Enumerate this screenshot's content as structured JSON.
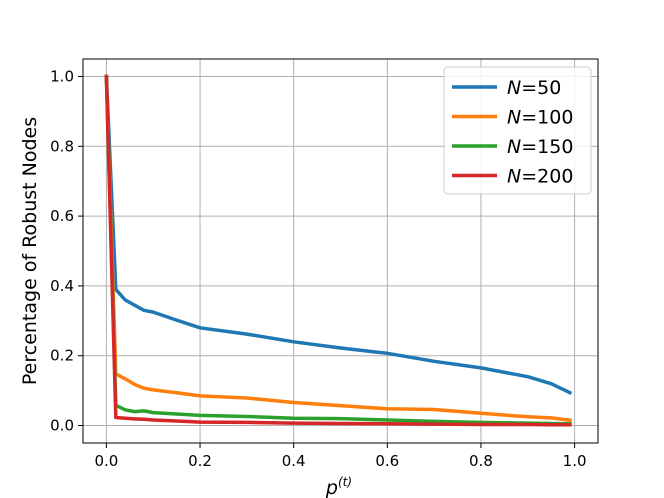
{
  "chart_data": {
    "type": "line",
    "title": "",
    "xlabel_base": "p",
    "xlabel_sup": "(t)",
    "ylabel": "Percentage of Robust Nodes",
    "xlim": [
      -0.05,
      1.05
    ],
    "ylim": [
      -0.05,
      1.05
    ],
    "xticks": [
      0.0,
      0.2,
      0.4,
      0.6,
      0.8,
      1.0
    ],
    "xtick_labels": [
      "0.0",
      "0.2",
      "0.4",
      "0.6",
      "0.8",
      "1.0"
    ],
    "yticks": [
      0.0,
      0.2,
      0.4,
      0.6,
      0.8,
      1.0
    ],
    "ytick_labels": [
      "0.0",
      "0.2",
      "0.4",
      "0.6",
      "0.8",
      "1.0"
    ],
    "grid": true,
    "legend_position": "top-right",
    "series": [
      {
        "name": "N=50",
        "name_var": "N",
        "name_value": "=50",
        "color": "#1f77b4",
        "x": [
          0.0,
          0.02,
          0.04,
          0.06,
          0.08,
          0.1,
          0.15,
          0.2,
          0.3,
          0.4,
          0.5,
          0.6,
          0.7,
          0.8,
          0.9,
          0.95,
          0.99
        ],
        "y": [
          1.0,
          0.39,
          0.36,
          0.345,
          0.33,
          0.325,
          0.302,
          0.28,
          0.262,
          0.24,
          0.222,
          0.207,
          0.184,
          0.165,
          0.14,
          0.12,
          0.094
        ]
      },
      {
        "name": "N=100",
        "name_var": "N",
        "name_value": "=100",
        "color": "#ff7f0e",
        "x": [
          0.0,
          0.02,
          0.04,
          0.06,
          0.08,
          0.1,
          0.15,
          0.2,
          0.3,
          0.4,
          0.5,
          0.6,
          0.7,
          0.8,
          0.9,
          0.95,
          0.99
        ],
        "y": [
          1.0,
          0.148,
          0.134,
          0.118,
          0.107,
          0.102,
          0.094,
          0.085,
          0.079,
          0.066,
          0.057,
          0.048,
          0.046,
          0.035,
          0.025,
          0.022,
          0.015
        ]
      },
      {
        "name": "N=150",
        "name_var": "N",
        "name_value": "=150",
        "color": "#2ca02c",
        "x": [
          0.0,
          0.02,
          0.04,
          0.06,
          0.08,
          0.1,
          0.15,
          0.2,
          0.3,
          0.4,
          0.5,
          0.6,
          0.7,
          0.8,
          0.9,
          0.95,
          0.99
        ],
        "y": [
          1.0,
          0.058,
          0.045,
          0.04,
          0.042,
          0.037,
          0.033,
          0.029,
          0.026,
          0.021,
          0.02,
          0.016,
          0.012,
          0.009,
          0.007,
          0.006,
          0.005
        ]
      },
      {
        "name": "N=200",
        "name_var": "N",
        "name_value": "=200",
        "color": "#d62728",
        "x": [
          0.0,
          0.02,
          0.04,
          0.06,
          0.08,
          0.1,
          0.15,
          0.2,
          0.3,
          0.4,
          0.5,
          0.6,
          0.7,
          0.8,
          0.9,
          0.95,
          0.99
        ],
        "y": [
          1.0,
          0.023,
          0.021,
          0.019,
          0.018,
          0.016,
          0.013,
          0.01,
          0.009,
          0.007,
          0.006,
          0.005,
          0.004,
          0.003,
          0.003,
          0.002,
          0.002
        ]
      }
    ]
  }
}
